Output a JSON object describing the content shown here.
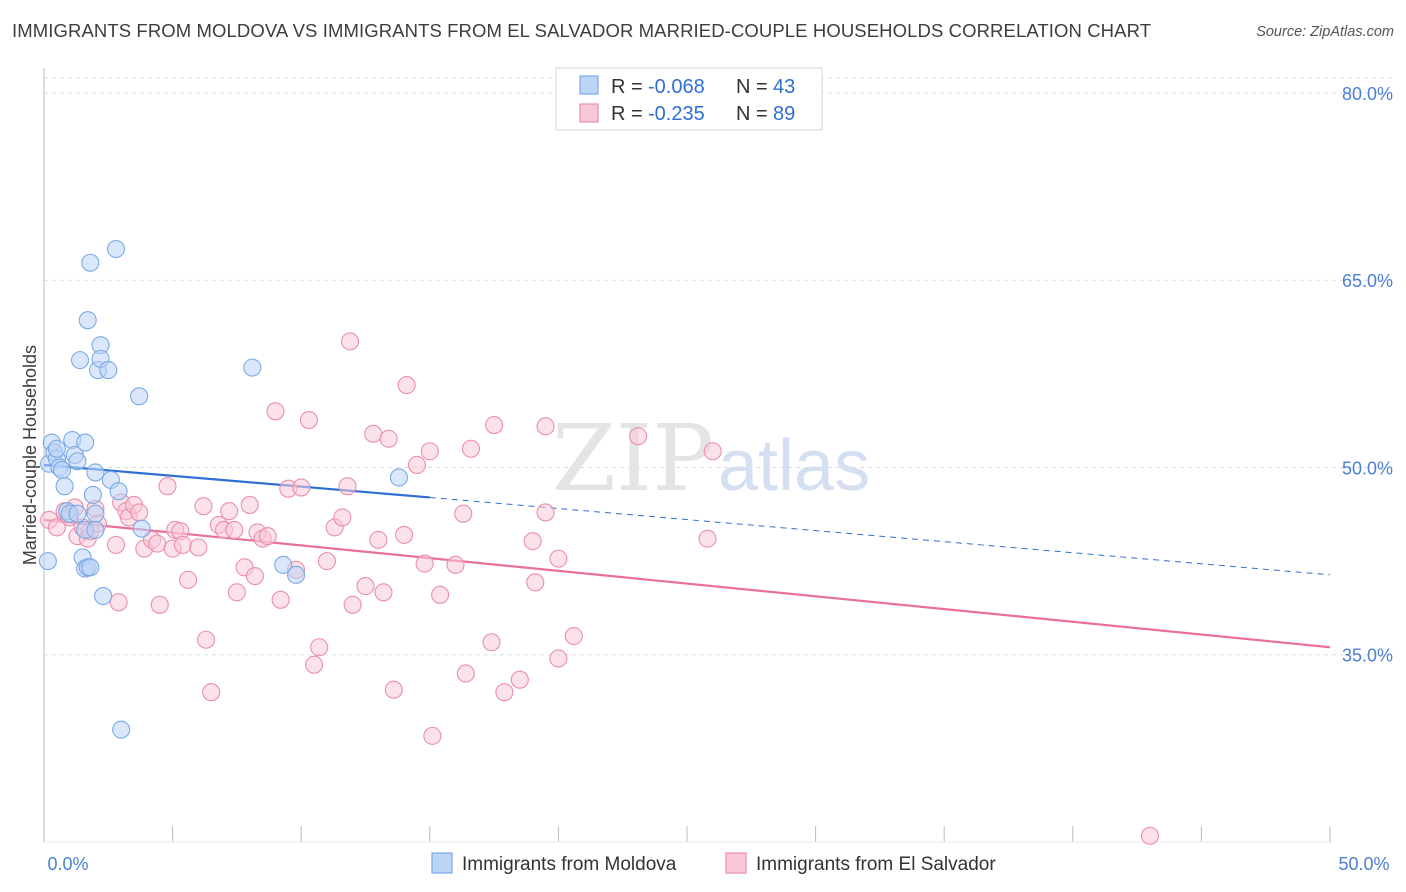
{
  "title": "IMMIGRANTS FROM MOLDOVA VS IMMIGRANTS FROM EL SALVADOR MARRIED-COUPLE HOUSEHOLDS CORRELATION CHART",
  "source": "Source: ZipAtlas.com",
  "watermark": {
    "zip": "ZIP",
    "atlas": "atlas"
  },
  "colors": {
    "blue": "#7aa9e6",
    "blue_fill": "#bcd4f5",
    "blue_line": "#2f6fd4",
    "pink": "#eb8fab",
    "pink_fill": "#f8c8d6",
    "pink_line": "#e8709a",
    "tick": "#4a7fd4",
    "grid": "#dddddd"
  },
  "legend": {
    "rows": [
      {
        "r_label": "R =",
        "r_value": "-0.068",
        "n_label": "N =",
        "n_value": "43"
      },
      {
        "r_label": "R =",
        "r_value": "-0.235",
        "n_label": "N =",
        "n_value": "89"
      }
    ]
  },
  "chart_data": {
    "type": "scatter",
    "ylabel": "Married-couple Households",
    "xlim": [
      0,
      50
    ],
    "ylim": [
      20,
      82
    ],
    "x_tick_labels": [
      "0.0%",
      "50.0%"
    ],
    "y_ticks": [
      35,
      50,
      65,
      80
    ],
    "y_tick_labels": [
      "35.0%",
      "50.0%",
      "65.0%",
      "80.0%"
    ],
    "grid": true,
    "legend_position": "top-center",
    "series": [
      {
        "name": "Immigrants from Moldova",
        "color": "#7aa9e6",
        "trend": {
          "x0": 0,
          "y0": 50.2,
          "x1": 15,
          "y1": 47.6,
          "dashed_to_x": 50,
          "dashed_to_y": 41.4
        },
        "points": [
          [
            0.2,
            50.3
          ],
          [
            0.3,
            52.0
          ],
          [
            0.4,
            51.2
          ],
          [
            0.5,
            50.7
          ],
          [
            0.6,
            50.0
          ],
          [
            0.7,
            49.8
          ],
          [
            0.8,
            48.5
          ],
          [
            0.9,
            46.5
          ],
          [
            1.0,
            46.3
          ],
          [
            1.1,
            52.2
          ],
          [
            1.2,
            51.0
          ],
          [
            1.3,
            50.5
          ],
          [
            1.3,
            46.3
          ],
          [
            1.4,
            58.6
          ],
          [
            1.6,
            52.0
          ],
          [
            1.5,
            42.8
          ],
          [
            1.6,
            41.9
          ],
          [
            1.6,
            45.0
          ],
          [
            1.7,
            42.0
          ],
          [
            1.8,
            42.0
          ],
          [
            1.9,
            47.8
          ],
          [
            2.0,
            49.6
          ],
          [
            2.0,
            46.3
          ],
          [
            1.7,
            61.8
          ],
          [
            1.8,
            66.4
          ],
          [
            2.0,
            45.0
          ],
          [
            2.1,
            57.8
          ],
          [
            2.2,
            59.8
          ],
          [
            2.2,
            58.7
          ],
          [
            2.3,
            39.7
          ],
          [
            2.5,
            57.8
          ],
          [
            2.6,
            49.0
          ],
          [
            2.8,
            67.5
          ],
          [
            2.9,
            48.1
          ],
          [
            3.0,
            29.0
          ],
          [
            3.7,
            55.7
          ],
          [
            3.8,
            45.1
          ],
          [
            8.1,
            58.0
          ],
          [
            9.3,
            42.2
          ],
          [
            9.8,
            41.4
          ],
          [
            13.8,
            49.2
          ],
          [
            0.15,
            42.5
          ],
          [
            0.5,
            51.5
          ]
        ]
      },
      {
        "name": "Immigrants from El Salvador",
        "color": "#eb8fab",
        "trend": {
          "x0": 0,
          "y0": 45.8,
          "x1": 50,
          "y1": 35.6
        },
        "points": [
          [
            0.2,
            45.8
          ],
          [
            0.5,
            45.2
          ],
          [
            0.8,
            46.5
          ],
          [
            1.0,
            46.0
          ],
          [
            1.2,
            46.8
          ],
          [
            1.3,
            44.5
          ],
          [
            1.5,
            45.2
          ],
          [
            1.7,
            44.3
          ],
          [
            1.8,
            44.9
          ],
          [
            2.0,
            46.7
          ],
          [
            2.1,
            45.5
          ],
          [
            2.8,
            43.8
          ],
          [
            2.9,
            39.2
          ],
          [
            3.0,
            47.2
          ],
          [
            3.2,
            46.5
          ],
          [
            3.3,
            46.0
          ],
          [
            3.5,
            47.0
          ],
          [
            3.7,
            46.4
          ],
          [
            3.9,
            43.5
          ],
          [
            4.2,
            44.2
          ],
          [
            4.4,
            43.9
          ],
          [
            4.5,
            39.0
          ],
          [
            4.8,
            48.5
          ],
          [
            5.0,
            43.5
          ],
          [
            5.1,
            45.0
          ],
          [
            5.3,
            44.9
          ],
          [
            5.4,
            43.8
          ],
          [
            5.6,
            41.0
          ],
          [
            6.0,
            43.6
          ],
          [
            6.2,
            46.9
          ],
          [
            6.3,
            36.2
          ],
          [
            6.5,
            32.0
          ],
          [
            6.8,
            45.4
          ],
          [
            7.0,
            45.0
          ],
          [
            7.2,
            46.5
          ],
          [
            7.4,
            45.0
          ],
          [
            7.5,
            40.0
          ],
          [
            7.8,
            42.0
          ],
          [
            8.0,
            47.0
          ],
          [
            8.2,
            41.3
          ],
          [
            8.3,
            44.8
          ],
          [
            8.5,
            44.3
          ],
          [
            8.7,
            44.5
          ],
          [
            9.0,
            54.5
          ],
          [
            9.2,
            39.4
          ],
          [
            9.5,
            48.3
          ],
          [
            9.8,
            41.8
          ],
          [
            10.0,
            48.4
          ],
          [
            10.3,
            53.8
          ],
          [
            10.5,
            34.2
          ],
          [
            10.7,
            35.6
          ],
          [
            11.0,
            42.5
          ],
          [
            11.3,
            45.2
          ],
          [
            11.6,
            46.0
          ],
          [
            11.8,
            48.5
          ],
          [
            11.9,
            60.1
          ],
          [
            12.0,
            39.0
          ],
          [
            12.5,
            40.5
          ],
          [
            12.8,
            52.7
          ],
          [
            13.0,
            44.2
          ],
          [
            13.2,
            40.0
          ],
          [
            13.4,
            52.3
          ],
          [
            13.6,
            32.2
          ],
          [
            14.0,
            44.6
          ],
          [
            14.1,
            56.6
          ],
          [
            14.5,
            50.2
          ],
          [
            14.8,
            42.3
          ],
          [
            15.0,
            51.3
          ],
          [
            15.1,
            28.5
          ],
          [
            15.4,
            39.8
          ],
          [
            16.0,
            42.2
          ],
          [
            16.3,
            46.3
          ],
          [
            16.4,
            33.5
          ],
          [
            16.6,
            51.5
          ],
          [
            17.4,
            36.0
          ],
          [
            17.5,
            53.4
          ],
          [
            17.9,
            32.0
          ],
          [
            18.5,
            33.0
          ],
          [
            19.0,
            44.1
          ],
          [
            19.1,
            40.8
          ],
          [
            19.5,
            46.4
          ],
          [
            19.5,
            53.3
          ],
          [
            20.0,
            42.7
          ],
          [
            20.0,
            34.7
          ],
          [
            20.6,
            36.5
          ],
          [
            23.1,
            52.5
          ],
          [
            25.8,
            44.3
          ],
          [
            26.0,
            51.3
          ],
          [
            43.0,
            20.5
          ]
        ]
      }
    ]
  },
  "bottom_legend": [
    "Immigrants from Moldova",
    "Immigrants from El Salvador"
  ]
}
